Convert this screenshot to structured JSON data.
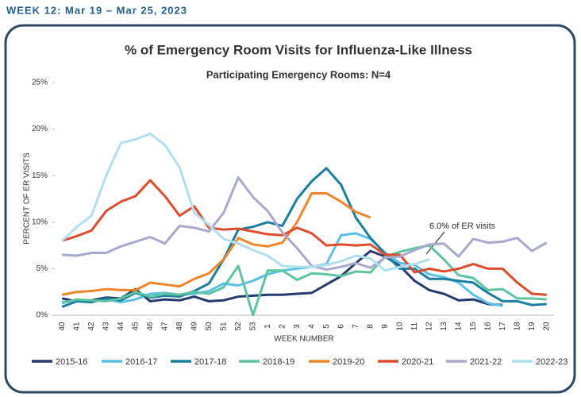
{
  "header": "WEEK 12: Mar 19 – Mar 25, 2023",
  "chart_data": {
    "type": "line",
    "title": "% of Emergency Room Visits for Influenza-Like Illness",
    "subtitle": "Participating Emergency Rooms: N=4",
    "x_label": "WEEK NUMBER",
    "y_label": "PERCENT OF ER VISITS",
    "annotation": "6.0% of ER visits",
    "grid": false,
    "ylim": [
      0,
      25
    ],
    "yticks": [
      {
        "value": 0,
        "label": "0%"
      },
      {
        "value": 5,
        "label": "5%"
      },
      {
        "value": 10,
        "label": "10%"
      },
      {
        "value": 15,
        "label": "15%"
      },
      {
        "value": 20,
        "label": "20%"
      },
      {
        "value": 25,
        "label": "25%"
      }
    ],
    "categories": [
      "40",
      "41",
      "42",
      "43",
      "44",
      "45",
      "46",
      "47",
      "48",
      "49",
      "50",
      "51",
      "52",
      "53",
      "1",
      "2",
      "3",
      "4",
      "5",
      "6",
      "7",
      "8",
      "9",
      "10",
      "11",
      "12",
      "13",
      "14",
      "15",
      "16",
      "17",
      "18",
      "19",
      "20"
    ],
    "series": [
      {
        "name": "2015-16",
        "color": "#253a6e",
        "values": [
          1.8,
          1.5,
          1.6,
          1.9,
          1.8,
          2.8,
          1.5,
          1.7,
          1.6,
          2.0,
          1.5,
          1.6,
          2.0,
          2.1,
          2.2,
          2.2,
          2.3,
          2.4,
          3.3,
          4.2,
          5.6,
          6.9,
          6.3,
          5.3,
          3.7,
          2.7,
          2.3,
          1.6,
          1.7,
          1.2,
          1.1,
          null,
          null,
          null
        ]
      },
      {
        "name": "2016-17",
        "color": "#5bc0e8",
        "values": [
          1.4,
          1.6,
          1.5,
          1.7,
          1.4,
          1.7,
          2.3,
          2.4,
          2.2,
          2.3,
          2.6,
          3.4,
          3.2,
          3.7,
          4.4,
          4.8,
          5.0,
          5.2,
          5.5,
          8.6,
          8.8,
          8.2,
          6.7,
          5.6,
          5.4,
          4.4,
          4.1,
          3.5,
          2.2,
          1.3,
          1.0,
          null,
          null,
          null
        ]
      },
      {
        "name": "2017-18",
        "color": "#1a7fa0",
        "values": [
          0.9,
          1.5,
          1.4,
          1.8,
          1.6,
          2.4,
          1.9,
          2.1,
          2.0,
          2.6,
          3.4,
          6.0,
          9.2,
          9.5,
          10.0,
          9.6,
          12.5,
          14.4,
          15.8,
          14.0,
          10.5,
          8.3,
          6.6,
          5.0,
          5.0,
          3.9,
          3.9,
          3.7,
          3.5,
          2.4,
          1.5,
          1.5,
          1.1,
          1.2
        ]
      },
      {
        "name": "2018-19",
        "color": "#5cc4a0",
        "values": [
          1.3,
          1.7,
          1.6,
          1.5,
          1.8,
          2.5,
          2.0,
          2.3,
          2.2,
          2.5,
          2.3,
          3.0,
          5.3,
          0,
          4.8,
          4.8,
          3.8,
          4.5,
          4.4,
          4.2,
          4.7,
          4.6,
          6.3,
          6.8,
          7.2,
          7.5,
          6.0,
          4.3,
          4.0,
          2.7,
          2.8,
          1.8,
          1.8,
          1.7
        ]
      },
      {
        "name": "2019-20",
        "color": "#f0862a",
        "values": [
          2.2,
          2.5,
          2.6,
          2.8,
          2.7,
          2.7,
          3.5,
          3.3,
          3.1,
          3.9,
          4.5,
          6.0,
          8.3,
          7.6,
          7.4,
          7.8,
          10.0,
          13.1,
          13.1,
          12.2,
          11.1,
          10.5,
          null,
          null,
          null,
          null,
          null,
          null,
          null,
          null,
          null,
          null,
          null,
          null
        ]
      },
      {
        "name": "2020-21",
        "color": "#e04b2c",
        "values": [
          8.0,
          8.5,
          9.1,
          11.2,
          12.2,
          12.8,
          14.5,
          12.8,
          10.7,
          11.7,
          9.4,
          9.2,
          9.3,
          9.0,
          8.7,
          8.6,
          9.4,
          8.8,
          7.5,
          7.6,
          7.5,
          7.6,
          6.5,
          6.5,
          4.6,
          5.0,
          4.7,
          5.0,
          5.5,
          5.0,
          5.0,
          3.5,
          2.3,
          2.2
        ]
      },
      {
        "name": "2021-22",
        "color": "#a9a9d0",
        "values": [
          6.5,
          6.4,
          6.7,
          6.7,
          7.4,
          7.9,
          8.4,
          7.7,
          9.6,
          9.4,
          9.0,
          11.0,
          14.8,
          12.7,
          11.2,
          8.9,
          7.2,
          5.3,
          4.9,
          5.2,
          5.6,
          5.1,
          6.2,
          6.3,
          7.0,
          7.6,
          7.7,
          6.3,
          8.2,
          7.8,
          7.9,
          8.3,
          6.9,
          7.8
        ]
      },
      {
        "name": "2022-23",
        "color": "#aee0f0",
        "values": [
          8.0,
          9.5,
          10.7,
          15.0,
          18.5,
          18.9,
          19.5,
          18.3,
          15.9,
          11.0,
          9.7,
          8.2,
          7.7,
          7.0,
          6.4,
          5.3,
          5.2,
          5.2,
          5.4,
          5.8,
          6.4,
          6.1,
          4.8,
          5.2,
          5.5,
          6.0,
          null,
          null,
          null,
          null,
          null,
          null,
          null,
          null
        ]
      }
    ]
  }
}
